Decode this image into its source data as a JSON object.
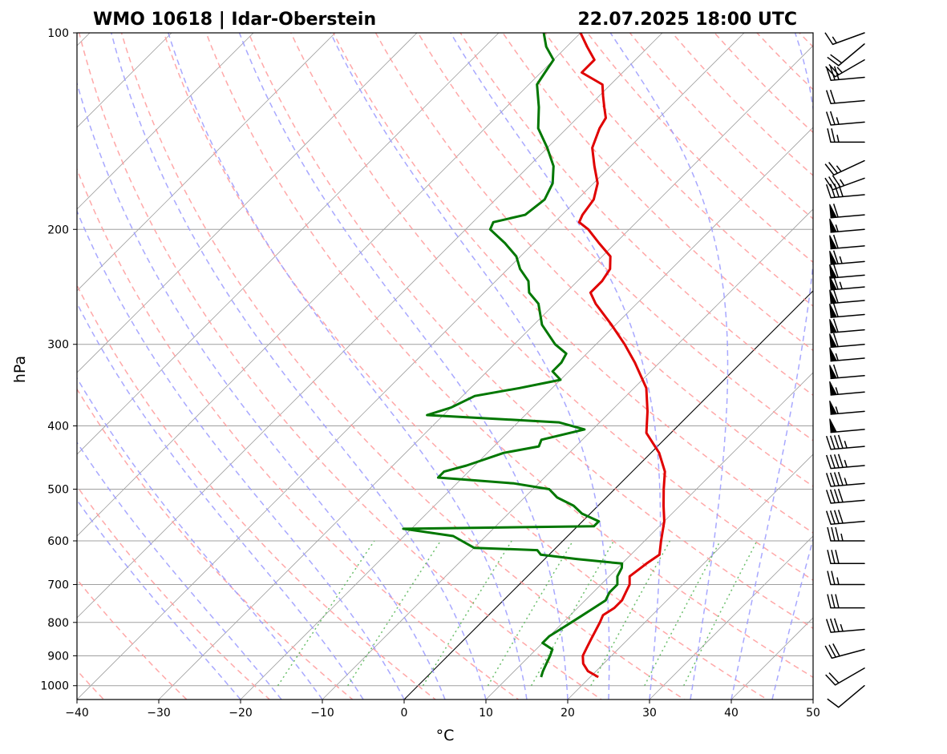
{
  "chart_data": {
    "type": "line",
    "subtype": "skew-t log-p diagram",
    "title_left": "WMO 10618 | Idar-Oberstein",
    "title_right": "22.07.2025 18:00 UTC",
    "xlabel": "°C",
    "ylabel": "hPa",
    "xlim": [
      -40,
      50
    ],
    "ylim": [
      1050,
      100
    ],
    "y_scale": "log",
    "x_ticks": [
      -40,
      -30,
      -20,
      -10,
      0,
      10,
      20,
      30,
      40,
      50
    ],
    "x_tick_labels": [
      "−40",
      "−30",
      "−20",
      "−10",
      "0",
      "10",
      "20",
      "30",
      "40",
      "50"
    ],
    "y_ticks": [
      100,
      200,
      300,
      400,
      500,
      600,
      700,
      800,
      900,
      1000
    ],
    "y_tick_labels": [
      "100",
      "200",
      "300",
      "400",
      "500",
      "600",
      "700",
      "800",
      "900",
      "1000"
    ],
    "grid": true,
    "reference_lines": {
      "isotherm_color": "#a0a0a0",
      "zero_isotherm_color": "#000000",
      "dry_adiabat_color": "#ff9999",
      "moist_adiabat_color": "#9999ff",
      "mixing_ratio_color": "#5cb85c"
    },
    "series": [
      {
        "color": "#e00000",
        "values": [
          [
            970,
            21.0
          ],
          [
            950,
            19.0
          ],
          [
            925,
            17.5
          ],
          [
            900,
            16.5
          ],
          [
            875,
            16.0
          ],
          [
            850,
            15.5
          ],
          [
            800,
            14.5
          ],
          [
            780,
            14.0
          ],
          [
            760,
            14.5
          ],
          [
            740,
            14.5
          ],
          [
            720,
            14.0
          ],
          [
            700,
            13.5
          ],
          [
            680,
            12.5
          ],
          [
            650,
            13.0
          ],
          [
            630,
            13.5
          ],
          [
            600,
            12.0
          ],
          [
            560,
            10.0
          ],
          [
            530,
            8.0
          ],
          [
            500,
            6.0
          ],
          [
            470,
            4.0
          ],
          [
            440,
            1.0
          ],
          [
            410,
            -3.0
          ],
          [
            380,
            -5.5
          ],
          [
            350,
            -8.5
          ],
          [
            320,
            -13.0
          ],
          [
            300,
            -16.5
          ],
          [
            280,
            -20.5
          ],
          [
            260,
            -25.0
          ],
          [
            250,
            -27.0
          ],
          [
            240,
            -27.0
          ],
          [
            230,
            -27.5
          ],
          [
            220,
            -29.0
          ],
          [
            210,
            -32.0
          ],
          [
            200,
            -35.0
          ],
          [
            195,
            -37.0
          ],
          [
            190,
            -37.5
          ],
          [
            180,
            -38.0
          ],
          [
            170,
            -39.5
          ],
          [
            160,
            -42.0
          ],
          [
            150,
            -44.5
          ],
          [
            140,
            -46.0
          ],
          [
            135,
            -46.5
          ],
          [
            130,
            -48.0
          ],
          [
            125,
            -49.5
          ],
          [
            120,
            -51.0
          ],
          [
            115,
            -55.0
          ],
          [
            110,
            -55.0
          ],
          [
            105,
            -57.5
          ],
          [
            100,
            -60.0
          ]
        ]
      },
      {
        "color": "#007700",
        "values": [
          [
            970,
            14.0
          ],
          [
            950,
            13.5
          ],
          [
            925,
            13.0
          ],
          [
            900,
            12.5
          ],
          [
            880,
            12.0
          ],
          [
            860,
            10.0
          ],
          [
            840,
            10.0
          ],
          [
            820,
            10.5
          ],
          [
            800,
            11.0
          ],
          [
            780,
            11.5
          ],
          [
            760,
            12.0
          ],
          [
            740,
            12.5
          ],
          [
            720,
            12.0
          ],
          [
            700,
            12.0
          ],
          [
            680,
            11.0
          ],
          [
            660,
            10.5
          ],
          [
            650,
            10.0
          ],
          [
            640,
            4.0
          ],
          [
            630,
            -1.0
          ],
          [
            620,
            -2.0
          ],
          [
            615,
            -10.0
          ],
          [
            590,
            -14.0
          ],
          [
            575,
            -21.0
          ],
          [
            570,
            2.0
          ],
          [
            560,
            2.0
          ],
          [
            545,
            -1.0
          ],
          [
            530,
            -3.0
          ],
          [
            515,
            -6.0
          ],
          [
            500,
            -8.0
          ],
          [
            490,
            -13.0
          ],
          [
            480,
            -23.0
          ],
          [
            470,
            -23.0
          ],
          [
            460,
            -21.0
          ],
          [
            440,
            -18.0
          ],
          [
            430,
            -14.5
          ],
          [
            420,
            -15.0
          ],
          [
            405,
            -11.0
          ],
          [
            395,
            -15.0
          ],
          [
            385,
            -32.0
          ],
          [
            375,
            -30.0
          ],
          [
            360,
            -28.5
          ],
          [
            350,
            -24.0
          ],
          [
            340,
            -20.0
          ],
          [
            330,
            -22.0
          ],
          [
            320,
            -22.0
          ],
          [
            310,
            -22.5
          ],
          [
            300,
            -25.0
          ],
          [
            280,
            -29.0
          ],
          [
            260,
            -32.0
          ],
          [
            250,
            -34.5
          ],
          [
            240,
            -36.0
          ],
          [
            230,
            -38.5
          ],
          [
            220,
            -40.5
          ],
          [
            210,
            -43.5
          ],
          [
            200,
            -47.0
          ],
          [
            195,
            -47.5
          ],
          [
            190,
            -44.5
          ],
          [
            180,
            -44.0
          ],
          [
            170,
            -45.0
          ],
          [
            160,
            -47.0
          ],
          [
            150,
            -50.0
          ],
          [
            140,
            -53.5
          ],
          [
            130,
            -56.0
          ],
          [
            120,
            -59.0
          ],
          [
            115,
            -59.5
          ],
          [
            110,
            -60.0
          ],
          [
            105,
            -62.5
          ],
          [
            100,
            -64.5
          ]
        ]
      }
    ],
    "wind_barbs": [
      {
        "p": 1000,
        "dir": 230,
        "speed": 10
      },
      {
        "p": 940,
        "dir": 240,
        "speed": 20
      },
      {
        "p": 880,
        "dir": 255,
        "speed": 30
      },
      {
        "p": 820,
        "dir": 265,
        "speed": 35
      },
      {
        "p": 760,
        "dir": 270,
        "speed": 30
      },
      {
        "p": 700,
        "dir": 270,
        "speed": 25
      },
      {
        "p": 650,
        "dir": 270,
        "speed": 30
      },
      {
        "p": 600,
        "dir": 270,
        "speed": 35
      },
      {
        "p": 560,
        "dir": 265,
        "speed": 40
      },
      {
        "p": 520,
        "dir": 265,
        "speed": 40
      },
      {
        "p": 490,
        "dir": 265,
        "speed": 45
      },
      {
        "p": 460,
        "dir": 265,
        "speed": 45
      },
      {
        "p": 430,
        "dir": 265,
        "speed": 45
      },
      {
        "p": 405,
        "dir": 265,
        "speed": 50
      },
      {
        "p": 380,
        "dir": 265,
        "speed": 55
      },
      {
        "p": 355,
        "dir": 265,
        "speed": 55
      },
      {
        "p": 335,
        "dir": 265,
        "speed": 60
      },
      {
        "p": 315,
        "dir": 265,
        "speed": 55
      },
      {
        "p": 300,
        "dir": 265,
        "speed": 60
      },
      {
        "p": 285,
        "dir": 265,
        "speed": 60
      },
      {
        "p": 270,
        "dir": 265,
        "speed": 60
      },
      {
        "p": 257,
        "dir": 265,
        "speed": 60
      },
      {
        "p": 245,
        "dir": 265,
        "speed": 65
      },
      {
        "p": 235,
        "dir": 265,
        "speed": 60
      },
      {
        "p": 224,
        "dir": 265,
        "speed": 65
      },
      {
        "p": 212,
        "dir": 265,
        "speed": 60
      },
      {
        "p": 200,
        "dir": 265,
        "speed": 55
      },
      {
        "p": 190,
        "dir": 265,
        "speed": 60
      },
      {
        "p": 177,
        "dir": 265,
        "speed": 40
      },
      {
        "p": 167,
        "dir": 250,
        "speed": 35
      },
      {
        "p": 157,
        "dir": 245,
        "speed": 25
      },
      {
        "p": 147,
        "dir": 270,
        "speed": 25
      },
      {
        "p": 137,
        "dir": 265,
        "speed": 25
      },
      {
        "p": 127,
        "dir": 265,
        "speed": 20
      },
      {
        "p": 117,
        "dir": 265,
        "speed": 30
      },
      {
        "p": 110,
        "dir": 240,
        "speed": 25
      },
      {
        "p": 104,
        "dir": 230,
        "speed": 20
      },
      {
        "p": 100,
        "dir": 250,
        "speed": 15
      }
    ]
  }
}
